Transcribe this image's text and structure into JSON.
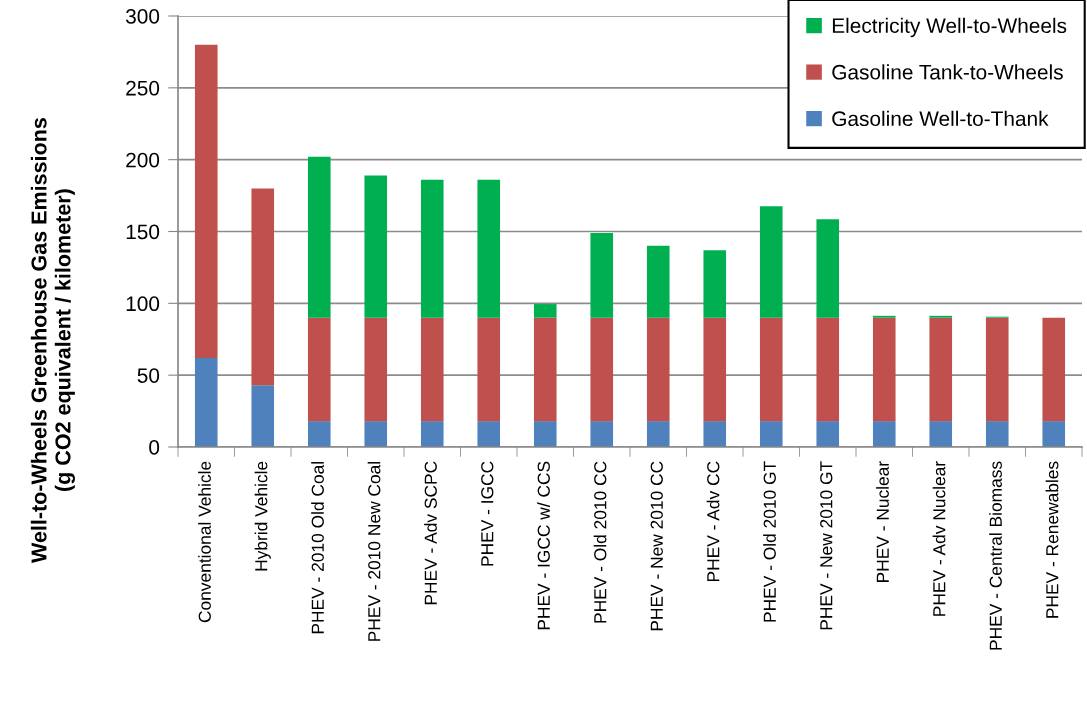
{
  "chart_data": {
    "type": "bar",
    "stacked": true,
    "ylabel": "Well-to-Wheels Greenhouse Gas Emissions\n(g CO2 equivalent / kilometer)",
    "categories": [
      "Conventional Vehicle",
      "Hybrid Vehicle",
      "PHEV - 2010 Old Coal",
      "PHEV - 2010 New Coal",
      "PHEV - Adv SCPC",
      "PHEV - IGCC",
      "PHEV - IGCC w/ CCS",
      "PHEV - Old 2010 CC",
      "PHEV - New 2010 CC",
      "PHEV - Adv CC",
      "PHEV - Old 2010 GT",
      "PHEV - New 2010 GT",
      "PHEV - Nuclear",
      "PHEV - Adv Nuclear",
      "PHEV - Central Biomass",
      "PHEV - Renewables"
    ],
    "series": [
      {
        "name": "Gasoline Well-to-Thank",
        "color": "#4f81bd",
        "values": [
          62,
          43,
          18,
          18,
          18,
          18,
          18,
          18,
          18,
          18,
          18,
          18,
          18,
          18,
          18,
          18
        ]
      },
      {
        "name": "Gasoline Tank-to-Wheels",
        "color": "#c0504d",
        "values": [
          218,
          137,
          72,
          72,
          72,
          72,
          72,
          72,
          72,
          72,
          72,
          72,
          72,
          72,
          72,
          72
        ]
      },
      {
        "name": "Electricity Well-to-Wheels",
        "color": "#00b050",
        "values": [
          null,
          null,
          112,
          99,
          96,
          96,
          9.5,
          59,
          50,
          47,
          77.5,
          68.5,
          1.3,
          1.3,
          0.7,
          null
        ]
      }
    ],
    "ylim": [
      0,
      300
    ],
    "yticks": [
      0,
      50,
      100,
      150,
      200,
      250,
      300
    ],
    "grid": "y",
    "legend": "top right"
  }
}
